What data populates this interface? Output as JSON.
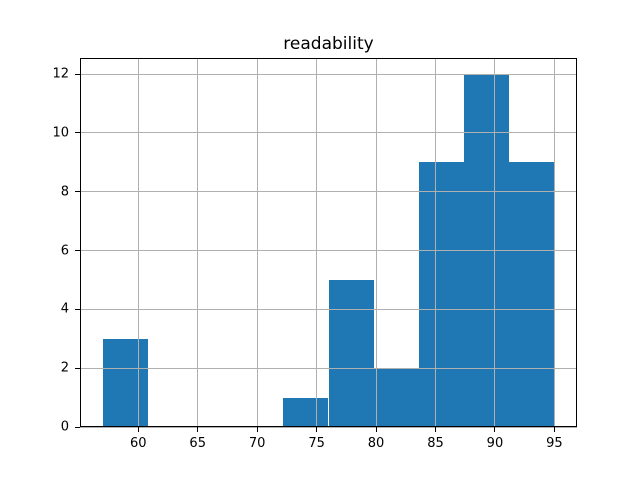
{
  "figure": {
    "background": "#ffffff"
  },
  "chart_data": {
    "type": "bar",
    "subtype": "histogram",
    "title": "readability",
    "xlabel": "",
    "ylabel": "",
    "bin_edges": [
      57.0,
      60.8,
      64.6,
      68.4,
      72.2,
      76.0,
      79.8,
      83.6,
      87.4,
      91.2,
      95.0
    ],
    "counts": [
      3,
      0,
      0,
      0,
      1,
      5,
      2,
      9,
      12,
      9
    ],
    "xticks": [
      60,
      65,
      70,
      75,
      80,
      85,
      90,
      95
    ],
    "yticks": [
      0,
      2,
      4,
      6,
      8,
      10,
      12
    ],
    "xlim": [
      55.1,
      96.9
    ],
    "ylim": [
      0,
      12.55
    ],
    "grid": true,
    "grid_above_bars": true,
    "legend": "none",
    "bar_color": "#1f77b4",
    "grid_color": "#b0b0b0",
    "axis_color": "#000000",
    "text_color": "#000000"
  }
}
